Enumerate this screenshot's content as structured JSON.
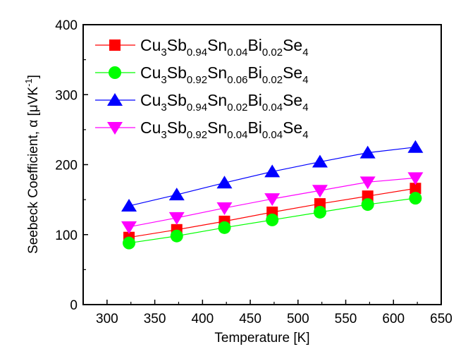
{
  "chart_data": {
    "type": "line",
    "xlabel": "Temperature [K]",
    "ylabel_main": "Seebeck Coefficient, α [μVK",
    "ylabel_exp": "-1",
    "ylabel_close": "]",
    "xlim": [
      275,
      650
    ],
    "ylim": [
      0,
      400
    ],
    "x_ticks": [
      300,
      350,
      400,
      450,
      500,
      550,
      600,
      650
    ],
    "y_ticks": [
      0,
      100,
      200,
      300,
      400
    ],
    "x": [
      323,
      373,
      423,
      473,
      523,
      573,
      623
    ],
    "legend_position": "top-left",
    "series": [
      {
        "name": "Cu3Sb0.94Sn0.04Bi0.02Se4",
        "label_parts": [
          [
            "Cu",
            ""
          ],
          [
            "3",
            "sub"
          ],
          [
            "Sb",
            ""
          ],
          [
            "0.94",
            "sub"
          ],
          [
            "Sn",
            ""
          ],
          [
            "0.04",
            "sub"
          ],
          [
            "Bi",
            ""
          ],
          [
            "0.02",
            "sub"
          ],
          [
            "Se",
            ""
          ],
          [
            "4",
            "sub"
          ]
        ],
        "marker": "square",
        "color": "#ff0000",
        "values": [
          96,
          107,
          119,
          132,
          144,
          155,
          166
        ]
      },
      {
        "name": "Cu3Sb0.92Sn0.06Bi0.02Se4",
        "label_parts": [
          [
            "Cu",
            ""
          ],
          [
            "3",
            "sub"
          ],
          [
            "Sb",
            ""
          ],
          [
            "0.92",
            "sub"
          ],
          [
            "Sn",
            ""
          ],
          [
            "0.06",
            "sub"
          ],
          [
            "Bi",
            ""
          ],
          [
            "0.02",
            "sub"
          ],
          [
            "Se",
            ""
          ],
          [
            "4",
            "sub"
          ]
        ],
        "marker": "circle",
        "color": "#00ff00",
        "values": [
          88,
          98,
          110,
          121,
          132,
          143,
          152
        ]
      },
      {
        "name": "Cu3Sb0.94Sn0.02Bi0.04Se4",
        "label_parts": [
          [
            "Cu",
            ""
          ],
          [
            "3",
            "sub"
          ],
          [
            "Sb",
            ""
          ],
          [
            "0.94",
            "sub"
          ],
          [
            "Sn",
            ""
          ],
          [
            "0.02",
            "sub"
          ],
          [
            "Bi",
            ""
          ],
          [
            "0.04",
            "sub"
          ],
          [
            "Se",
            ""
          ],
          [
            "4",
            "sub"
          ]
        ],
        "marker": "triangle-up",
        "color": "#0000ff",
        "values": [
          141,
          157,
          174,
          190,
          204,
          217,
          225
        ]
      },
      {
        "name": "Cu3Sb0.92Sn0.04Bi0.04Se4",
        "label_parts": [
          [
            "Cu",
            ""
          ],
          [
            "3",
            "sub"
          ],
          [
            "Sb",
            ""
          ],
          [
            "0.92",
            "sub"
          ],
          [
            "Sn",
            ""
          ],
          [
            "0.04",
            "sub"
          ],
          [
            "Bi",
            ""
          ],
          [
            "0.04",
            "sub"
          ],
          [
            "Se",
            ""
          ],
          [
            "4",
            "sub"
          ]
        ],
        "marker": "triangle-down",
        "color": "#ff00ff",
        "values": [
          111,
          124,
          138,
          151,
          163,
          175,
          181
        ]
      }
    ]
  }
}
